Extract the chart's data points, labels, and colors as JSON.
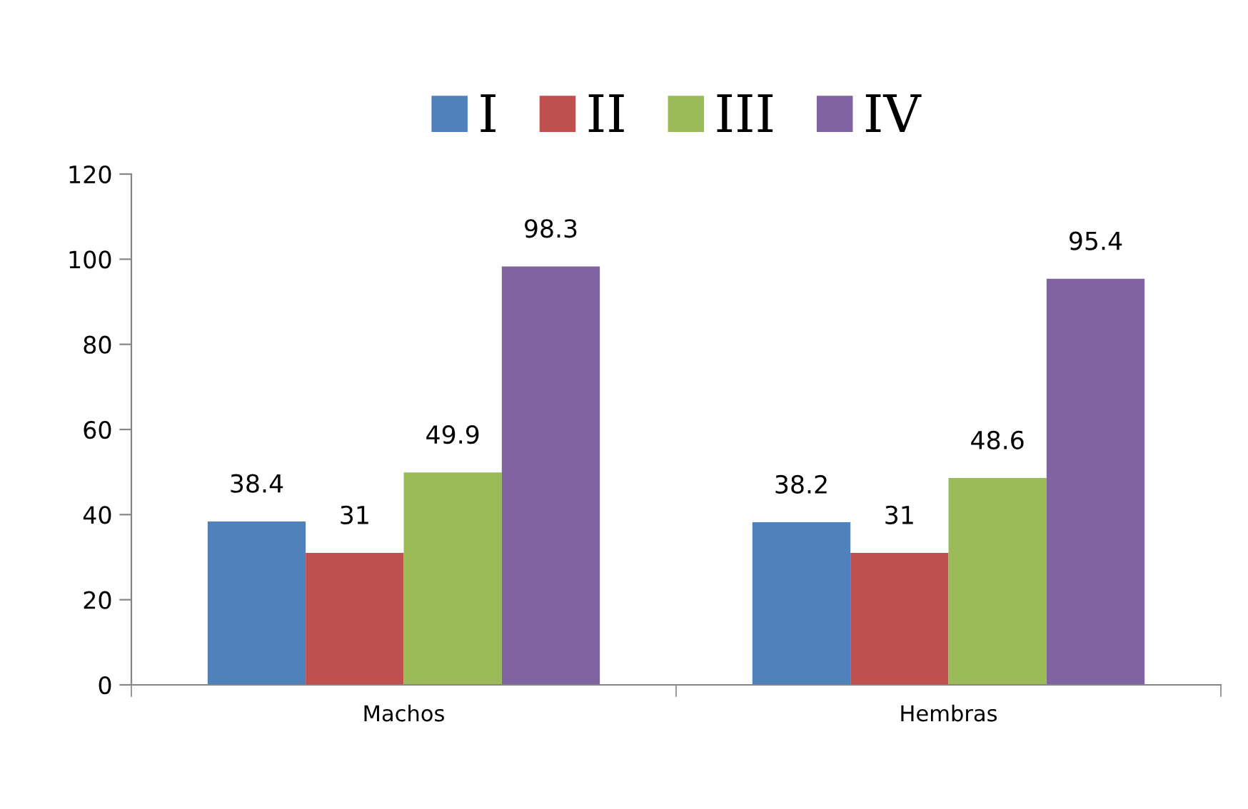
{
  "chart_data": {
    "type": "bar",
    "categories": [
      "Machos",
      "Hembras"
    ],
    "series": [
      {
        "name": "I",
        "color": "#4f81bd",
        "values": [
          38.4,
          38.2
        ]
      },
      {
        "name": "II",
        "color": "#c0504d",
        "values": [
          31,
          31
        ]
      },
      {
        "name": "III",
        "color": "#9bbb59",
        "values": [
          49.9,
          48.6
        ]
      },
      {
        "name": "IV",
        "color": "#8064a2",
        "values": [
          98.3,
          95.4
        ]
      }
    ],
    "ylim": [
      0,
      120
    ],
    "yticks": [
      0,
      20,
      40,
      60,
      80,
      100,
      120
    ],
    "data_labels": true,
    "legend": "top",
    "grid": false
  }
}
